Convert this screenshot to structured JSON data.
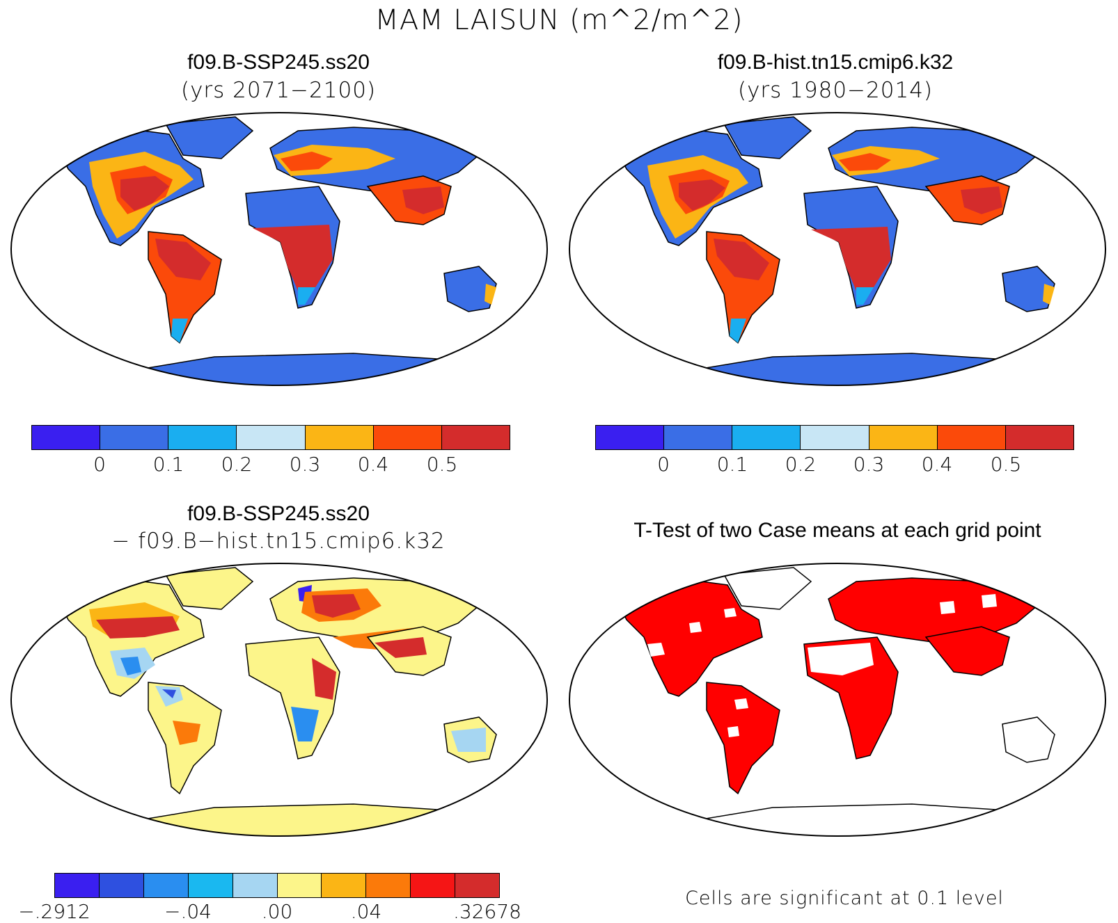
{
  "figure": {
    "title": "MAM LAISUN (m^2/m^2)"
  },
  "panels": [
    {
      "id": "case1",
      "title": "f09.B-SSP245.ss20",
      "subtitle": "(yrs 2071−2100)",
      "colorbar": {
        "colors": [
          "#3a1ff0",
          "#3a6ee6",
          "#1aaef0",
          "#c8e6f5",
          "#fbb515",
          "#fb4a0a",
          "#d42c2c"
        ],
        "tick_labels": [
          "0",
          "0.1",
          "0.2",
          "0.3",
          "0.4",
          "0.5"
        ]
      }
    },
    {
      "id": "case2",
      "title": "f09.B-hist.tn15.cmip6.k32",
      "subtitle": "(yrs 1980−2014)",
      "colorbar": {
        "colors": [
          "#3a1ff0",
          "#3a6ee6",
          "#1aaef0",
          "#c8e6f5",
          "#fbb515",
          "#fb4a0a",
          "#d42c2c"
        ],
        "tick_labels": [
          "0",
          "0.1",
          "0.2",
          "0.3",
          "0.4",
          "0.5"
        ]
      }
    },
    {
      "id": "difference",
      "title": "f09.B-SSP245.ss20",
      "subtitle": "− f09.B−hist.tn15.cmip6.k32",
      "colorbar": {
        "colors": [
          "#3a1ff0",
          "#2e50e0",
          "#2a8ef0",
          "#1ab8f0",
          "#a6d6f2",
          "#fcf58a",
          "#fbb515",
          "#fb7a0a",
          "#f51515",
          "#d42c2c"
        ],
        "tick_labels": [
          "−.2912",
          "−.04",
          ".00",
          ".04",
          ".32678"
        ]
      }
    },
    {
      "id": "ttest",
      "title": "T-Test of two Case means at each grid point",
      "note": "Cells are significant at 0.1 level",
      "significant_color": "#ff0000"
    }
  ]
}
